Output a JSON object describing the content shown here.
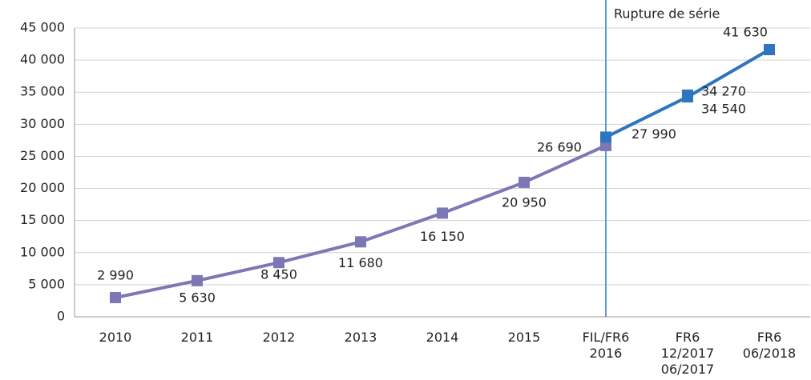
{
  "chart_data": {
    "type": "line",
    "annotation": "Rupture de série",
    "categories": [
      "2010",
      "2011",
      "2012",
      "2013",
      "2014",
      "2015",
      "FIL/FR6\n2016",
      "FR6\n12/2017\n06/2017",
      "FR6\n06/2018"
    ],
    "series": [
      {
        "color": "#7b78b5",
        "values": [
          2990,
          5630,
          8450,
          11680,
          16150,
          20950,
          26690,
          null,
          null
        ],
        "value_labels": [
          "2 990",
          "5 630",
          "8 450",
          "11 680",
          "16 150",
          "20 950",
          "26 690",
          null,
          null
        ]
      },
      {
        "color": "#2f74be",
        "values": [
          null,
          null,
          null,
          null,
          null,
          null,
          27990,
          34270,
          41630
        ],
        "value_labels": [
          null,
          null,
          null,
          null,
          null,
          null,
          "27 990",
          "34 270",
          "41 630"
        ]
      },
      {
        "color": "#2f74be",
        "values": [
          null,
          null,
          null,
          null,
          null,
          null,
          null,
          34540,
          null
        ],
        "value_labels": [
          null,
          null,
          null,
          null,
          null,
          null,
          null,
          "34 540",
          null
        ]
      }
    ],
    "ylim": [
      0,
      45000
    ],
    "yticks": [
      0,
      {
        "value": 5000,
        "label": "5 000"
      },
      {
        "value": 10000,
        "label": "10 000"
      },
      {
        "value": 15000,
        "label": "15 000"
      },
      {
        "value": 20000,
        "label": "20 000"
      },
      {
        "value": 25000,
        "label": "25 000"
      },
      {
        "value": 30000,
        "label": "30 000"
      },
      {
        "value": 35000,
        "label": "35 000"
      },
      {
        "value": 40000,
        "label": "40 000"
      },
      {
        "value": 45000,
        "label": "45 000"
      }
    ],
    "grid": true
  }
}
